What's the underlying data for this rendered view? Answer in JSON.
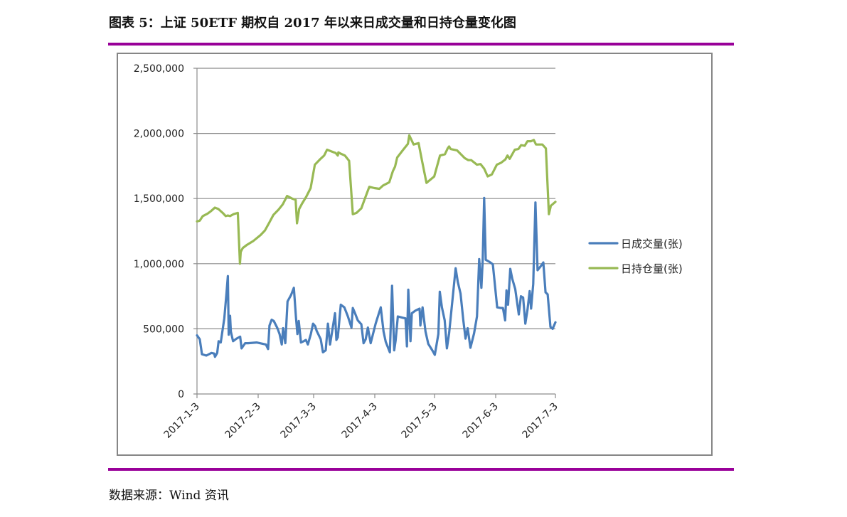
{
  "header": {
    "title": "图表 5：上证 50ETF 期权自 2017 年以来日成交量和日持仓量变化图"
  },
  "footer": {
    "source": "数据来源：Wind 资讯"
  },
  "colors": {
    "accent_rule": "#990099",
    "series_volume": "#4a7ebb",
    "series_open_interest": "#98b954",
    "grid": "#8c8c8c",
    "frame": "#868686"
  },
  "chart_data": {
    "type": "line",
    "title": "上证 50ETF 期权自 2017 年以来日成交量和日持仓量变化图",
    "xlabel": "",
    "ylabel": "",
    "ylim": [
      0,
      2500000
    ],
    "yticks": [
      0,
      500000,
      1000000,
      1500000,
      2000000,
      2500000
    ],
    "ytick_labels": [
      "0",
      "500,000",
      "1,000,000",
      "1,500,000",
      "2,000,000",
      "2,500,000"
    ],
    "xtick_labels": [
      "2017-1-3",
      "2017-2-3",
      "2017-3-3",
      "2017-4-3",
      "2017-5-3",
      "2017-6-3",
      "2017-7-3"
    ],
    "xrange_days": [
      0,
      181
    ],
    "grid": true,
    "legend_position": "right",
    "legend": [
      "日成交量(张)",
      "日持仓量(张)"
    ],
    "series": [
      {
        "name": "日成交量(张)",
        "color": "#4a7ebb",
        "points_day_value": [
          [
            0,
            450000
          ],
          [
            1.4,
            420000
          ],
          [
            2.5,
            305000
          ],
          [
            4.7,
            295000
          ],
          [
            7.3,
            315000
          ],
          [
            8.7,
            310000
          ],
          [
            9.1,
            285000
          ],
          [
            10.2,
            315000
          ],
          [
            10.9,
            405000
          ],
          [
            12,
            395000
          ],
          [
            13.8,
            580000
          ],
          [
            14.9,
            775000
          ],
          [
            15.6,
            905000
          ],
          [
            16,
            455000
          ],
          [
            16.7,
            600000
          ],
          [
            17.1,
            480000
          ],
          [
            18.2,
            405000
          ],
          [
            20,
            425000
          ],
          [
            21.8,
            440000
          ],
          [
            22.5,
            350000
          ],
          [
            24.3,
            390000
          ],
          [
            25.8,
            390000
          ],
          [
            30.1,
            395000
          ],
          [
            34.8,
            380000
          ],
          [
            35.9,
            345000
          ],
          [
            36.6,
            525000
          ],
          [
            37.7,
            570000
          ],
          [
            38.8,
            560000
          ],
          [
            40.6,
            505000
          ],
          [
            41.7,
            460000
          ],
          [
            42.8,
            380000
          ],
          [
            43.5,
            505000
          ],
          [
            44.6,
            390000
          ],
          [
            45.7,
            710000
          ],
          [
            47.5,
            760000
          ],
          [
            48.9,
            815000
          ],
          [
            50,
            585000
          ],
          [
            50.7,
            460000
          ],
          [
            51.4,
            560000
          ],
          [
            52.5,
            395000
          ],
          [
            53.9,
            405000
          ],
          [
            55,
            415000
          ],
          [
            56,
            380000
          ],
          [
            57.5,
            460000
          ],
          [
            58.6,
            540000
          ],
          [
            59.7,
            520000
          ],
          [
            60.4,
            485000
          ],
          [
            62.5,
            420000
          ],
          [
            63.6,
            320000
          ],
          [
            65,
            335000
          ],
          [
            66.1,
            540000
          ],
          [
            67.2,
            380000
          ],
          [
            69.7,
            620000
          ],
          [
            70.4,
            415000
          ],
          [
            71.1,
            435000
          ],
          [
            72.6,
            685000
          ],
          [
            74.4,
            665000
          ],
          [
            76.2,
            595000
          ],
          [
            78,
            510000
          ],
          [
            78.7,
            660000
          ],
          [
            79.8,
            620000
          ],
          [
            81.2,
            565000
          ],
          [
            83,
            535000
          ],
          [
            84.1,
            390000
          ],
          [
            85.2,
            420000
          ],
          [
            86.3,
            510000
          ],
          [
            87.7,
            390000
          ],
          [
            90.2,
            540000
          ],
          [
            92.8,
            665000
          ],
          [
            94.2,
            480000
          ],
          [
            95.3,
            400000
          ],
          [
            97.4,
            320000
          ],
          [
            98.5,
            830000
          ],
          [
            99.6,
            335000
          ],
          [
            100.3,
            410000
          ],
          [
            101.4,
            595000
          ],
          [
            103.9,
            585000
          ],
          [
            105.3,
            580000
          ],
          [
            106,
            365000
          ],
          [
            106.7,
            800000
          ],
          [
            107.8,
            405000
          ],
          [
            108.5,
            620000
          ],
          [
            110.3,
            640000
          ],
          [
            112.4,
            655000
          ],
          [
            112.8,
            525000
          ],
          [
            113.9,
            665000
          ],
          [
            115.4,
            480000
          ],
          [
            116.8,
            385000
          ],
          [
            119,
            330000
          ],
          [
            120.1,
            300000
          ],
          [
            121.9,
            460000
          ],
          [
            122.6,
            785000
          ],
          [
            123.7,
            665000
          ],
          [
            125.1,
            565000
          ],
          [
            126.2,
            350000
          ],
          [
            127.3,
            465000
          ],
          [
            130.6,
            965000
          ],
          [
            131.7,
            860000
          ],
          [
            133.1,
            770000
          ],
          [
            134.5,
            565000
          ],
          [
            135.6,
            425000
          ],
          [
            136.7,
            505000
          ],
          [
            138.1,
            355000
          ],
          [
            139.9,
            465000
          ],
          [
            141.4,
            595000
          ],
          [
            142.5,
            1035000
          ],
          [
            143.6,
            815000
          ],
          [
            144.3,
            1035000
          ],
          [
            145,
            1505000
          ],
          [
            145.8,
            1030000
          ],
          [
            147.6,
            1015000
          ],
          [
            149.4,
            995000
          ],
          [
            151.6,
            665000
          ],
          [
            153.4,
            660000
          ],
          [
            154.5,
            660000
          ],
          [
            155.6,
            565000
          ],
          [
            156.3,
            795000
          ],
          [
            157.1,
            685000
          ],
          [
            158.2,
            960000
          ],
          [
            159.2,
            885000
          ],
          [
            160.7,
            805000
          ],
          [
            162.5,
            610000
          ],
          [
            163.6,
            750000
          ],
          [
            164.7,
            740000
          ],
          [
            165.8,
            540000
          ],
          [
            166.9,
            645000
          ],
          [
            168,
            790000
          ],
          [
            168.7,
            655000
          ],
          [
            169.8,
            845000
          ],
          [
            170.9,
            1470000
          ],
          [
            172,
            950000
          ],
          [
            173.8,
            985000
          ],
          [
            174.9,
            1010000
          ],
          [
            176,
            780000
          ],
          [
            177.1,
            765000
          ],
          [
            178.5,
            515000
          ],
          [
            179.6,
            500000
          ],
          [
            181,
            550000
          ]
        ]
      },
      {
        "name": "日持仓量(张)",
        "color": "#98b954",
        "points_day_value": [
          [
            0,
            1325000
          ],
          [
            1.4,
            1330000
          ],
          [
            2.9,
            1365000
          ],
          [
            5.4,
            1385000
          ],
          [
            7.2,
            1405000
          ],
          [
            9,
            1430000
          ],
          [
            10.8,
            1420000
          ],
          [
            13,
            1390000
          ],
          [
            14.5,
            1365000
          ],
          [
            15.6,
            1370000
          ],
          [
            16.7,
            1365000
          ],
          [
            18.4,
            1380000
          ],
          [
            20.6,
            1390000
          ],
          [
            21.7,
            1000000
          ],
          [
            22.1,
            1090000
          ],
          [
            23.1,
            1120000
          ],
          [
            25.3,
            1145000
          ],
          [
            28.5,
            1175000
          ],
          [
            32.1,
            1220000
          ],
          [
            34.3,
            1255000
          ],
          [
            36.5,
            1315000
          ],
          [
            38.6,
            1375000
          ],
          [
            41.2,
            1415000
          ],
          [
            43.3,
            1455000
          ],
          [
            45.5,
            1520000
          ],
          [
            48,
            1500000
          ],
          [
            49.8,
            1490000
          ],
          [
            50.5,
            1310000
          ],
          [
            51.6,
            1420000
          ],
          [
            53,
            1460000
          ],
          [
            55.2,
            1515000
          ],
          [
            57.4,
            1580000
          ],
          [
            59.5,
            1760000
          ],
          [
            62.4,
            1805000
          ],
          [
            64.2,
            1830000
          ],
          [
            65.7,
            1875000
          ],
          [
            68.2,
            1860000
          ],
          [
            70,
            1850000
          ],
          [
            71.1,
            1830000
          ],
          [
            71.4,
            1855000
          ],
          [
            72.5,
            1845000
          ],
          [
            74.7,
            1830000
          ],
          [
            76.8,
            1790000
          ],
          [
            78.7,
            1380000
          ],
          [
            80.5,
            1390000
          ],
          [
            83,
            1425000
          ],
          [
            84.8,
            1500000
          ],
          [
            87,
            1590000
          ],
          [
            89.6,
            1580000
          ],
          [
            92.1,
            1575000
          ],
          [
            93.9,
            1600000
          ],
          [
            97.1,
            1625000
          ],
          [
            98.9,
            1710000
          ],
          [
            100,
            1745000
          ],
          [
            101.1,
            1815000
          ],
          [
            103.9,
            1870000
          ],
          [
            106.5,
            1920000
          ],
          [
            107.2,
            1985000
          ],
          [
            109.4,
            1915000
          ],
          [
            111.9,
            1925000
          ],
          [
            113.7,
            1785000
          ],
          [
            115.9,
            1620000
          ],
          [
            119.8,
            1670000
          ],
          [
            122.7,
            1830000
          ],
          [
            125.2,
            1840000
          ],
          [
            126.6,
            1885000
          ],
          [
            127.3,
            1900000
          ],
          [
            128.1,
            1880000
          ],
          [
            131.3,
            1870000
          ],
          [
            135.2,
            1810000
          ],
          [
            137,
            1795000
          ],
          [
            138.5,
            1795000
          ],
          [
            141.4,
            1760000
          ],
          [
            143.2,
            1765000
          ],
          [
            145,
            1730000
          ],
          [
            146.8,
            1670000
          ],
          [
            148.9,
            1685000
          ],
          [
            151.4,
            1760000
          ],
          [
            153.6,
            1775000
          ],
          [
            155.7,
            1800000
          ],
          [
            156.8,
            1830000
          ],
          [
            157.9,
            1805000
          ],
          [
            160.5,
            1875000
          ],
          [
            162.3,
            1880000
          ],
          [
            163.7,
            1910000
          ],
          [
            165.5,
            1905000
          ],
          [
            166.9,
            1940000
          ],
          [
            168.7,
            1940000
          ],
          [
            170.1,
            1950000
          ],
          [
            171.2,
            1915000
          ],
          [
            174.4,
            1915000
          ],
          [
            176.2,
            1885000
          ],
          [
            177.7,
            1380000
          ],
          [
            178.7,
            1445000
          ],
          [
            181,
            1475000
          ]
        ]
      }
    ]
  }
}
